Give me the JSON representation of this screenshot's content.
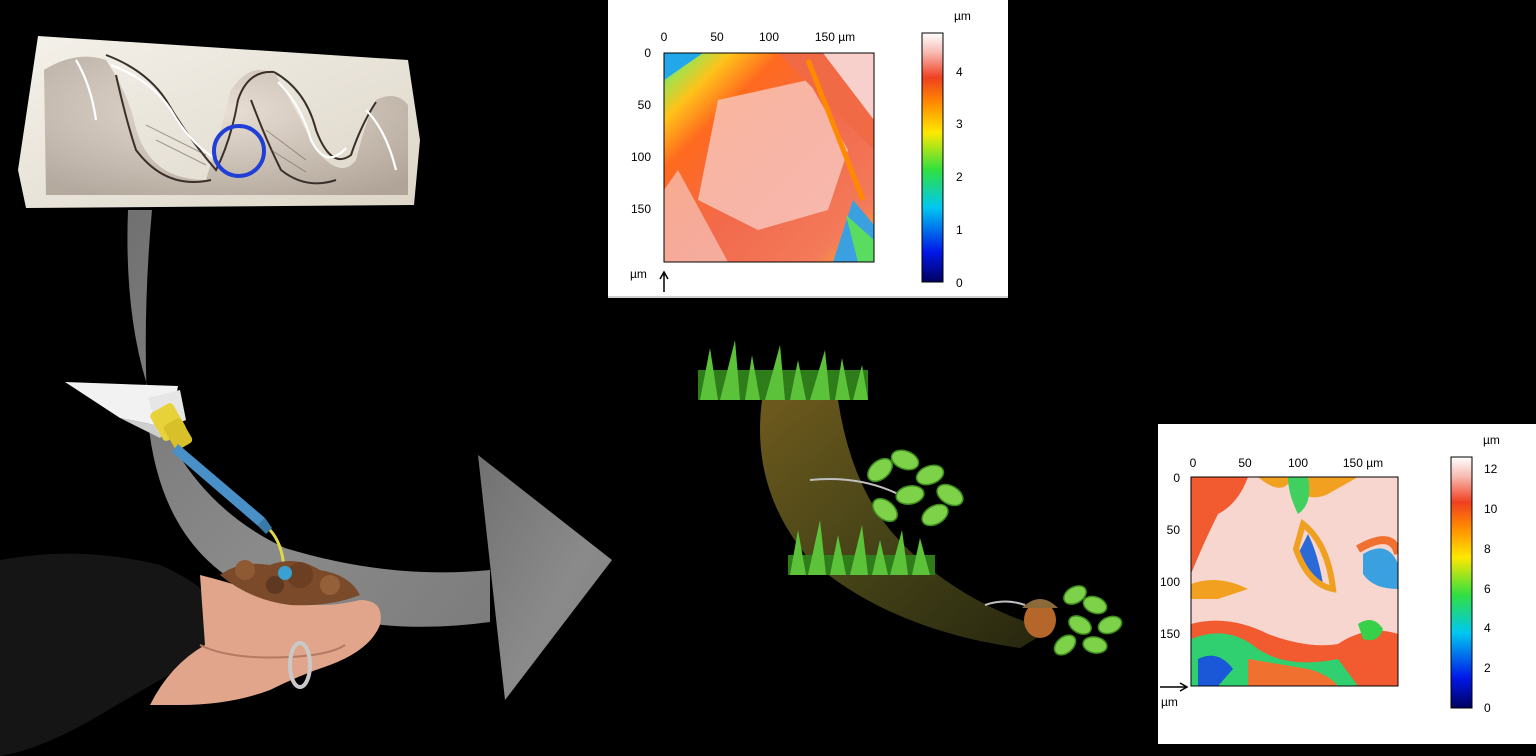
{
  "top_map": {
    "x_ticks": [
      "0",
      "50",
      "100",
      "150 µm"
    ],
    "y_ticks": [
      "0",
      "50",
      "100",
      "150"
    ],
    "y_unit": "µm",
    "colorbar_unit": "µm",
    "colorbar_ticks": [
      "0",
      "1",
      "2",
      "3",
      "4"
    ],
    "range": [
      0,
      4.7
    ]
  },
  "bottom_map": {
    "x_ticks": [
      "0",
      "50",
      "100",
      "150 µm"
    ],
    "y_ticks": [
      "0",
      "50",
      "100",
      "150"
    ],
    "y_unit": "µm",
    "colorbar_unit": "µm",
    "colorbar_ticks": [
      "0",
      "2",
      "4",
      "6",
      "8",
      "10",
      "12"
    ],
    "range": [
      0,
      12.6
    ]
  },
  "colors": {
    "background": "#000000",
    "arrow": "#8c8c8c",
    "highlight_circle": "#1f3fd6",
    "diet_gradient": "#6b5a1c"
  },
  "icons": [
    "tooth-illustration",
    "molding-tube",
    "hand-with-soil",
    "grass-icon",
    "leaves-icon",
    "acorn-icon"
  ]
}
